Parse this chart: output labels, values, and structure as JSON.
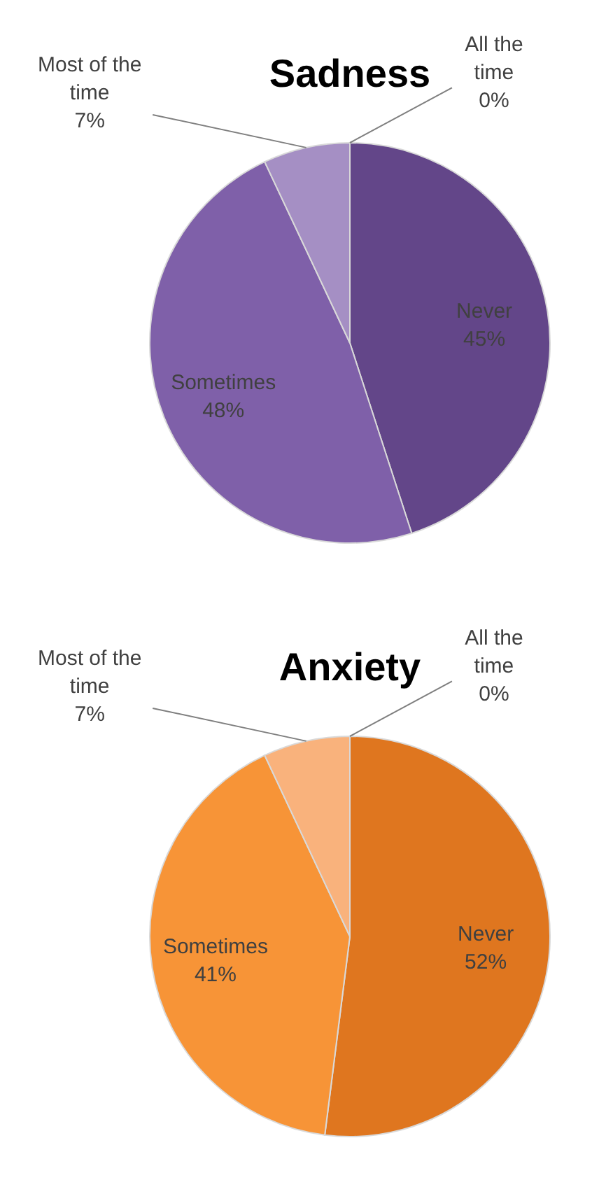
{
  "chart_data": [
    {
      "type": "pie",
      "title": "Sadness",
      "categories": [
        "Never",
        "Sometimes",
        "Most of the time",
        "All the time"
      ],
      "values": [
        45,
        48,
        7,
        0
      ],
      "value_labels": [
        "45%",
        "48%",
        "7%",
        "0%"
      ],
      "colors": [
        "#634689",
        "#7f60a9",
        "#a58fc4",
        "#8064a2"
      ]
    },
    {
      "type": "pie",
      "title": "Anxiety",
      "categories": [
        "Never",
        "Sometimes",
        "Most of the time",
        "All the time"
      ],
      "values": [
        52,
        41,
        7,
        0
      ],
      "value_labels": [
        "52%",
        "41%",
        "7%",
        "0%"
      ],
      "colors": [
        "#df761f",
        "#f79437",
        "#f9b27c",
        "#f79646"
      ]
    }
  ]
}
